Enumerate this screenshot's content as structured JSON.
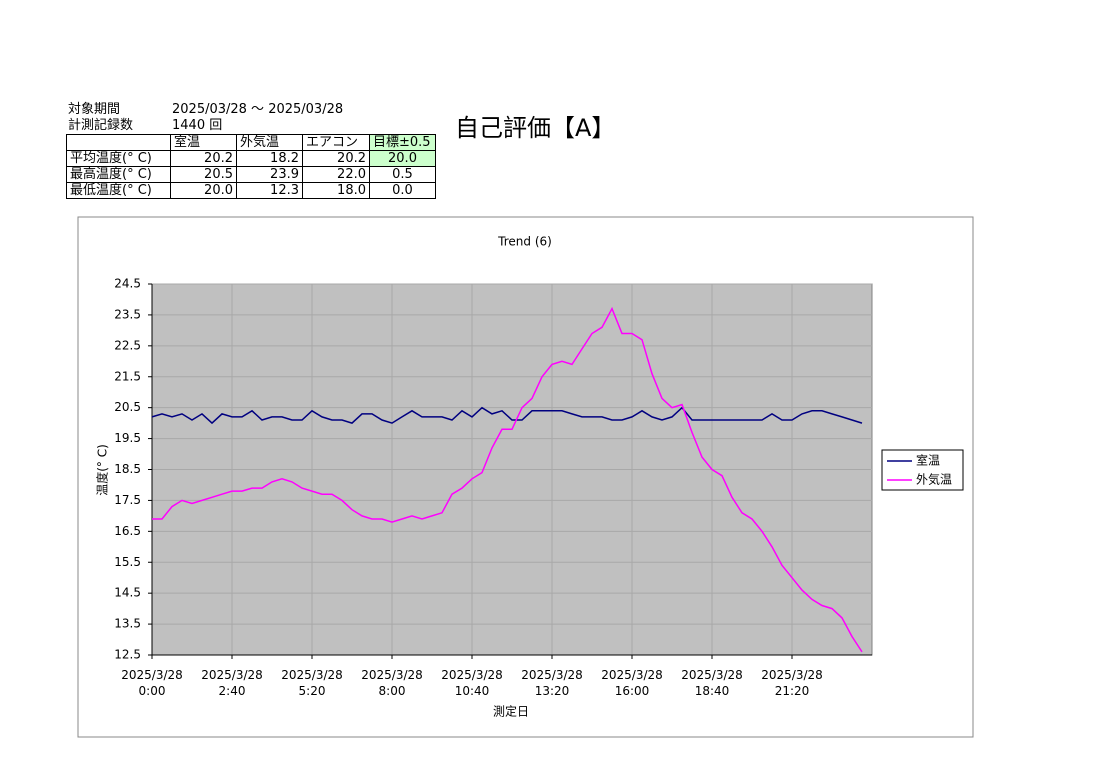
{
  "header": {
    "period_label": "対象期間",
    "period_value": "2025/03/28 ～ 2025/03/28",
    "count_label": "計測記録数",
    "count_value": "1440 回",
    "rating": "自己評価【A】"
  },
  "table": {
    "columns": [
      "",
      "室温",
      "外気温",
      "エアコン",
      "目標±0.5"
    ],
    "rows": [
      [
        "平均温度(° C)",
        "20.2",
        "18.2",
        "20.2",
        "20.0"
      ],
      [
        "最高温度(° C)",
        "20.5",
        "23.9",
        "22.0",
        "0.5"
      ],
      [
        "最低温度(° C)",
        "20.0",
        "12.3",
        "18.0",
        "0.0"
      ]
    ]
  },
  "chart_data": {
    "type": "line",
    "title": "Trend (6)",
    "x_label": "測定日",
    "y_label": "温度(° C)",
    "x": [
      "2025/3/28 0:00",
      "2025/3/28 0:20",
      "2025/3/28 0:40",
      "2025/3/28 1:00",
      "2025/3/28 1:20",
      "2025/3/28 1:40",
      "2025/3/28 2:00",
      "2025/3/28 2:20",
      "2025/3/28 2:40",
      "2025/3/28 3:00",
      "2025/3/28 3:20",
      "2025/3/28 3:40",
      "2025/3/28 4:00",
      "2025/3/28 4:20",
      "2025/3/28 4:40",
      "2025/3/28 5:00",
      "2025/3/28 5:20",
      "2025/3/28 5:40",
      "2025/3/28 6:00",
      "2025/3/28 6:20",
      "2025/3/28 6:40",
      "2025/3/28 7:00",
      "2025/3/28 7:20",
      "2025/3/28 7:40",
      "2025/3/28 8:00",
      "2025/3/28 8:20",
      "2025/3/28 8:40",
      "2025/3/28 9:00",
      "2025/3/28 9:20",
      "2025/3/28 9:40",
      "2025/3/28 10:00",
      "2025/3/28 10:20",
      "2025/3/28 10:40",
      "2025/3/28 11:00",
      "2025/3/28 11:20",
      "2025/3/28 11:40",
      "2025/3/28 12:00",
      "2025/3/28 12:20",
      "2025/3/28 12:40",
      "2025/3/28 13:00",
      "2025/3/28 13:20",
      "2025/3/28 13:40",
      "2025/3/28 14:00",
      "2025/3/28 14:20",
      "2025/3/28 14:40",
      "2025/3/28 15:00",
      "2025/3/28 15:20",
      "2025/3/28 15:40",
      "2025/3/28 16:00",
      "2025/3/28 16:20",
      "2025/3/28 16:40",
      "2025/3/28 17:00",
      "2025/3/28 17:20",
      "2025/3/28 17:40",
      "2025/3/28 18:00",
      "2025/3/28 18:20",
      "2025/3/28 18:40",
      "2025/3/28 19:00",
      "2025/3/28 19:20",
      "2025/3/28 19:40",
      "2025/3/28 20:00",
      "2025/3/28 20:20",
      "2025/3/28 20:40",
      "2025/3/28 21:00",
      "2025/3/28 21:20",
      "2025/3/28 21:40",
      "2025/3/28 22:00",
      "2025/3/28 22:20",
      "2025/3/28 22:40",
      "2025/3/28 23:00",
      "2025/3/28 23:20",
      "2025/3/28 23:40"
    ],
    "xticks": [
      "2025/3/28 0:00",
      "2025/3/28 2:40",
      "2025/3/28 5:20",
      "2025/3/28 8:00",
      "2025/3/28 10:40",
      "2025/3/28 13:20",
      "2025/3/28 16:00",
      "2025/3/28 18:40",
      "2025/3/28 21:20"
    ],
    "series": [
      {
        "name": "室温",
        "color": "#000080",
        "values": [
          20.2,
          20.3,
          20.2,
          20.3,
          20.1,
          20.3,
          20.0,
          20.3,
          20.2,
          20.2,
          20.4,
          20.1,
          20.2,
          20.2,
          20.1,
          20.1,
          20.4,
          20.2,
          20.1,
          20.1,
          20.0,
          20.3,
          20.3,
          20.1,
          20.0,
          20.2,
          20.4,
          20.2,
          20.2,
          20.2,
          20.1,
          20.4,
          20.2,
          20.5,
          20.3,
          20.4,
          20.1,
          20.1,
          20.4,
          20.4,
          20.4,
          20.4,
          20.3,
          20.2,
          20.2,
          20.2,
          20.1,
          20.1,
          20.2,
          20.4,
          20.2,
          20.1,
          20.2,
          20.5,
          20.1,
          20.1,
          20.1,
          20.1,
          20.1,
          20.1,
          20.1,
          20.1,
          20.3,
          20.1,
          20.1,
          20.3,
          20.4,
          20.4,
          20.3,
          20.2,
          20.1,
          20.0
        ]
      },
      {
        "name": "外気温",
        "color": "#ff00ff",
        "values": [
          16.9,
          16.9,
          17.3,
          17.5,
          17.4,
          17.5,
          17.6,
          17.7,
          17.8,
          17.8,
          17.9,
          17.9,
          18.1,
          18.2,
          18.1,
          17.9,
          17.8,
          17.7,
          17.7,
          17.5,
          17.2,
          17.0,
          16.9,
          16.9,
          16.8,
          16.9,
          17.0,
          16.9,
          17.0,
          17.1,
          17.7,
          17.9,
          18.2,
          18.4,
          19.2,
          19.8,
          19.8,
          20.5,
          20.8,
          21.5,
          21.9,
          22.0,
          21.9,
          22.4,
          22.9,
          23.1,
          23.7,
          22.9,
          22.9,
          22.7,
          21.6,
          20.8,
          20.5,
          20.6,
          19.7,
          18.9,
          18.5,
          18.3,
          17.6,
          17.1,
          16.9,
          16.5,
          16.0,
          15.4,
          15.0,
          14.6,
          14.3,
          14.1,
          14.0,
          13.7,
          13.1,
          12.6
        ]
      }
    ],
    "ylim": [
      12.5,
      24.5
    ],
    "yticks": [
      12.5,
      13.5,
      14.5,
      15.5,
      16.5,
      17.5,
      18.5,
      19.5,
      20.5,
      21.5,
      22.5,
      23.5,
      24.5
    ],
    "grid": true,
    "legend": "right"
  }
}
